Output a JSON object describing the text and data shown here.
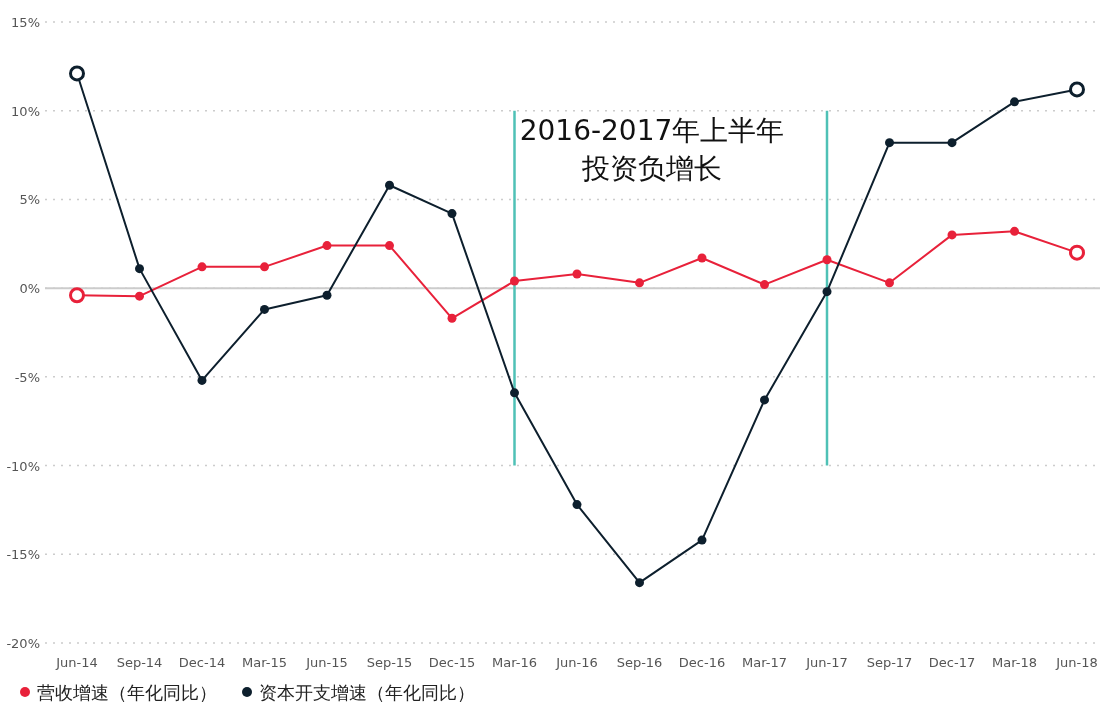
{
  "chart_data": {
    "type": "line",
    "categories": [
      "Jun-14",
      "Sep-14",
      "Dec-14",
      "Mar-15",
      "Jun-15",
      "Sep-15",
      "Dec-15",
      "Mar-16",
      "Jun-16",
      "Sep-16",
      "Dec-16",
      "Mar-17",
      "Jun-17",
      "Sep-17",
      "Dec-17",
      "Mar-18",
      "Jun-18"
    ],
    "series": [
      {
        "name": "营收增速（年化同比）",
        "color": "#e8213a",
        "values": [
          -0.4,
          -0.45,
          1.2,
          1.2,
          2.4,
          2.4,
          -1.7,
          0.4,
          0.8,
          0.3,
          1.7,
          0.2,
          1.6,
          0.3,
          3.0,
          3.2,
          2.0
        ]
      },
      {
        "name": "资本开支增速（年化同比）",
        "color": "#0d1f2d",
        "values": [
          12.1,
          1.1,
          -5.2,
          -1.2,
          -0.4,
          5.8,
          4.2,
          -5.9,
          -12.2,
          -16.6,
          -14.2,
          -6.3,
          -0.2,
          8.2,
          8.2,
          10.5,
          11.2
        ]
      }
    ],
    "ylim": [
      -20,
      15
    ],
    "yticks": [
      {
        "value": -20,
        "label": "-20%"
      },
      {
        "value": -15,
        "label": "-15%"
      },
      {
        "value": -10,
        "label": "-10%"
      },
      {
        "value": -5,
        "label": "-5%"
      },
      {
        "value": 0,
        "label": "0%"
      },
      {
        "value": 5,
        "label": "5%"
      },
      {
        "value": 10,
        "label": "10%"
      },
      {
        "value": 15,
        "label": "15%"
      }
    ],
    "grid": "y",
    "marker": "circle",
    "legend": "bottom left",
    "ref_lines": [
      {
        "axis": "y",
        "value": 0,
        "color": "#cccccc"
      },
      {
        "axis": "x",
        "value": "Mar-16",
        "color": "#4fc1b6"
      },
      {
        "axis": "x",
        "value": "Jun-17",
        "color": "#4fc1b6"
      }
    ],
    "annotations": [
      "2016-2017年上半年投资负增长"
    ]
  }
}
